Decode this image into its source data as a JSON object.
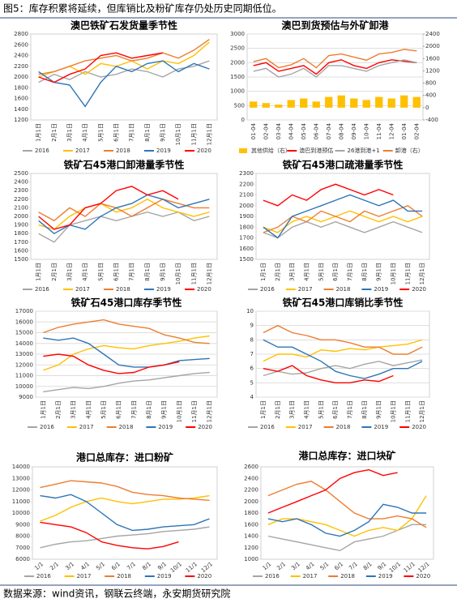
{
  "header": {
    "text": "图5：库存积累将延续，但库销比及粉矿库存仍处历史同期低位。"
  },
  "footer": {
    "text": "数据来源：wind资讯，钢联云终端，永安期货研究院"
  },
  "chart_data": [
    {
      "type": "line",
      "title": "澳巴铁矿石发货量季节性",
      "categories": [
        "1月1日",
        "2月1日",
        "3月1日",
        "4月1日",
        "5月1日",
        "6月1日",
        "7月1日",
        "8月1日",
        "9月1日",
        "10月1日",
        "11月1日",
        "12月1日"
      ],
      "ylim": [
        1200,
        2800
      ],
      "yticks": [
        1200,
        1400,
        1600,
        1800,
        2000,
        2200,
        2400,
        2600,
        2800
      ],
      "series": [
        {
          "name": "2016",
          "color": "#a5a5a5",
          "values": [
            1900,
            2050,
            1950,
            2100,
            2000,
            2050,
            2150,
            2100,
            2000,
            2150,
            2200,
            2300
          ]
        },
        {
          "name": "2017",
          "color": "#ffc000",
          "values": [
            2000,
            2100,
            2200,
            2050,
            2250,
            2200,
            2300,
            2150,
            2300,
            2250,
            2400,
            2650
          ]
        },
        {
          "name": "2018",
          "color": "#ed7d31",
          "values": [
            2050,
            2100,
            2200,
            2300,
            2350,
            2400,
            2300,
            2350,
            2450,
            2350,
            2500,
            2700
          ]
        },
        {
          "name": "2019",
          "color": "#2e75b6",
          "values": [
            2100,
            1900,
            1850,
            1450,
            1900,
            2200,
            2100,
            2250,
            2300,
            2100,
            2250,
            2150
          ]
        },
        {
          "name": "2020",
          "color": "#ff0000",
          "values": [
            2000,
            1900,
            2050,
            2150,
            2400,
            2450,
            2350,
            2400,
            2450,
            null,
            null,
            null
          ]
        }
      ]
    },
    {
      "type": "combo",
      "title": "澳巴到货预估与外矿卸港",
      "grid": true,
      "categories": [
        "01-04",
        "02-04",
        "03-04",
        "04-04",
        "05-04",
        "06-04",
        "07-04",
        "08-04",
        "09-04",
        "10-04",
        "11-04",
        "12-04",
        "01-04",
        "02-04"
      ],
      "ylim": [
        0,
        3000
      ],
      "yticks": [
        0,
        500,
        1000,
        1500,
        2000,
        2500,
        3000
      ],
      "y2lim": [
        -400,
        2400
      ],
      "y2ticks": [
        -400,
        0,
        400,
        800,
        1200,
        1600,
        2000,
        2400
      ],
      "series": [
        {
          "name": "其他供给（右）",
          "type": "bar",
          "axis": "y2",
          "color": "#ffc000",
          "values": [
            200,
            150,
            100,
            250,
            300,
            200,
            350,
            400,
            300,
            250,
            350,
            300,
            400,
            350
          ]
        },
        {
          "name": "澳巴到港预估",
          "color": "#ff0000",
          "values": [
            1900,
            2000,
            1700,
            1800,
            1900,
            1600,
            2000,
            2100,
            1900,
            1800,
            2000,
            2100,
            2050,
            2000
          ]
        },
        {
          "name": "26港到港+1",
          "color": "#a5a5a5",
          "values": [
            1700,
            1800,
            1500,
            1600,
            1800,
            1500,
            1900,
            1900,
            1800,
            1700,
            1900,
            2000,
            2100,
            2000
          ]
        },
        {
          "name": "卸港（右）",
          "axis": "y2",
          "color": "#ed7d31",
          "values": [
            1500,
            1600,
            1300,
            1400,
            1600,
            1300,
            1700,
            1750,
            1650,
            1550,
            1750,
            1800,
            1900,
            1850
          ]
        }
      ]
    },
    {
      "type": "line",
      "title": "铁矿石45港口卸港量季节性",
      "categories": [
        "1月1日",
        "2月1日",
        "3月1日",
        "4月1日",
        "5月1日",
        "6月1日",
        "7月1日",
        "8月1日",
        "9月1日",
        "10月1日",
        "11月1日",
        "12月1日"
      ],
      "ylim": [
        1500,
        2500
      ],
      "yticks": [
        1500,
        1600,
        1700,
        1800,
        1900,
        2000,
        2100,
        2200,
        2300,
        2400,
        2500
      ],
      "series": [
        {
          "name": "2016",
          "color": "#a5a5a5",
          "values": [
            1800,
            1700,
            1900,
            1950,
            2000,
            1950,
            2000,
            2050,
            2000,
            2050,
            1950,
            2000
          ]
        },
        {
          "name": "2017",
          "color": "#ffc000",
          "values": [
            1900,
            1850,
            2000,
            2100,
            2150,
            2050,
            2100,
            2200,
            2100,
            2050,
            2000,
            2050
          ]
        },
        {
          "name": "2018",
          "color": "#ed7d31",
          "values": [
            2050,
            1950,
            2100,
            2000,
            2150,
            2100,
            2000,
            2100,
            2200,
            2150,
            2100,
            2100
          ]
        },
        {
          "name": "2019",
          "color": "#2e75b6",
          "values": [
            1950,
            1800,
            1900,
            1850,
            2000,
            2100,
            2150,
            2250,
            2200,
            2100,
            2150,
            2200
          ]
        },
        {
          "name": "2020",
          "color": "#ff0000",
          "values": [
            2000,
            1850,
            1900,
            2100,
            2150,
            2300,
            2350,
            2250,
            2300,
            2200,
            null,
            null
          ]
        }
      ]
    },
    {
      "type": "line",
      "title": "铁矿石45港口疏港量季节性",
      "categories": [
        "1月1日",
        "2月1日",
        "3月1日",
        "4月1日",
        "5月1日",
        "6月1日",
        "7月1日",
        "8月1日",
        "9月1日",
        "10月1日",
        "11月1日",
        "12月1日"
      ],
      "ylim": [
        1500,
        2300
      ],
      "yticks": [
        1500,
        1600,
        1700,
        1800,
        1900,
        2000,
        2100,
        2200,
        2300
      ],
      "series": [
        {
          "name": "2016",
          "color": "#a5a5a5",
          "values": [
            1750,
            1700,
            1800,
            1850,
            1800,
            1850,
            1800,
            1750,
            1800,
            1850,
            1800,
            1750
          ]
        },
        {
          "name": "2017",
          "color": "#ffc000",
          "values": [
            1800,
            1750,
            1850,
            1900,
            1850,
            1900,
            1950,
            1900,
            1850,
            1900,
            1850,
            1900
          ]
        },
        {
          "name": "2018",
          "color": "#ed7d31",
          "values": [
            1750,
            1800,
            1900,
            1850,
            1950,
            1900,
            1850,
            1950,
            1900,
            1950,
            2000,
            1900
          ]
        },
        {
          "name": "2019",
          "color": "#2e75b6",
          "values": [
            1800,
            1700,
            1900,
            1950,
            2000,
            2050,
            2100,
            2050,
            2000,
            2050,
            1950,
            1950
          ]
        },
        {
          "name": "2020",
          "color": "#ff0000",
          "values": [
            2050,
            2000,
            2100,
            2050,
            2150,
            2200,
            2150,
            2100,
            2150,
            2100,
            null,
            null
          ]
        }
      ]
    },
    {
      "type": "line",
      "title": "铁矿石45港口库存季节性",
      "grid": true,
      "categories": [
        "1月1日",
        "2月1日",
        "3月1日",
        "4月1日",
        "5月1日",
        "6月1日",
        "7月1日",
        "8月1日",
        "9月1日",
        "10月1日",
        "11月1日",
        "12月1日"
      ],
      "ylim": [
        9000,
        17000
      ],
      "yticks": [
        9000,
        10000,
        11000,
        12000,
        13000,
        14000,
        15000,
        16000,
        17000
      ],
      "series": [
        {
          "name": "2016",
          "color": "#a5a5a5",
          "values": [
            9500,
            9700,
            9900,
            9800,
            10000,
            10300,
            10500,
            10600,
            10800,
            11000,
            11200,
            11300
          ]
        },
        {
          "name": "2017",
          "color": "#ffc000",
          "values": [
            11500,
            12000,
            13000,
            13500,
            13800,
            13600,
            13500,
            13800,
            14000,
            14200,
            14500,
            14700
          ]
        },
        {
          "name": "2018",
          "color": "#ed7d31",
          "values": [
            15000,
            15500,
            15800,
            16000,
            16200,
            15800,
            15600,
            15400,
            14800,
            14500,
            14100,
            14000
          ]
        },
        {
          "name": "2019",
          "color": "#2e75b6",
          "values": [
            14500,
            14300,
            14500,
            14000,
            13000,
            12000,
            11800,
            11800,
            12000,
            12400,
            12500,
            12600
          ]
        },
        {
          "name": "2020",
          "color": "#ff0000",
          "values": [
            12800,
            13000,
            12800,
            12000,
            11500,
            11200,
            11300,
            11800,
            12000,
            12300,
            null,
            null
          ]
        }
      ]
    },
    {
      "type": "line",
      "title": "铁矿石45港口库销比季节性",
      "grid": true,
      "categories": [
        "1月1日",
        "2月1日",
        "3月1日",
        "4月1日",
        "5月1日",
        "6月1日",
        "7月1日",
        "8月1日",
        "9月1日",
        "10月1日",
        "11月1日",
        "12月1日"
      ],
      "ylim": [
        4,
        10
      ],
      "yticks": [
        4,
        5,
        6,
        7,
        8,
        9,
        10
      ],
      "series": [
        {
          "name": "2016",
          "color": "#a5a5a5",
          "values": [
            5.5,
            5.8,
            5.6,
            5.7,
            6,
            6.2,
            6,
            6.3,
            6.5,
            6.2,
            6.4,
            6.6
          ]
        },
        {
          "name": "2017",
          "color": "#ffc000",
          "values": [
            6.5,
            7,
            7,
            6.8,
            7.3,
            7.2,
            7.4,
            7.3,
            7.5,
            7.6,
            7.7,
            8
          ]
        },
        {
          "name": "2018",
          "color": "#ed7d31",
          "values": [
            8.5,
            9,
            8.5,
            8.3,
            8,
            8,
            7.8,
            7.5,
            7.5,
            7,
            7,
            7.5
          ]
        },
        {
          "name": "2019",
          "color": "#2e75b6",
          "values": [
            8,
            7.5,
            7.5,
            7,
            6.5,
            5.8,
            5.5,
            5.3,
            5.6,
            6,
            6,
            6.5
          ]
        },
        {
          "name": "2020",
          "color": "#ff0000",
          "values": [
            6,
            5.8,
            6.2,
            5.5,
            5.2,
            5,
            5,
            5.2,
            5.1,
            5.5,
            null,
            null
          ]
        }
      ]
    },
    {
      "type": "line",
      "title": "港口总库存：进口粉矿",
      "categories": [
        "1/1",
        "2/1",
        "3/1",
        "4/1",
        "5/1",
        "6/1",
        "7/1",
        "8/1",
        "9/1",
        "10/1",
        "11/1",
        "12/1"
      ],
      "ylim": [
        6000,
        14000
      ],
      "yticks": [
        6000,
        7000,
        8000,
        9000,
        10000,
        11000,
        12000,
        13000,
        14000
      ],
      "series": [
        {
          "name": "2016",
          "color": "#a5a5a5",
          "values": [
            7000,
            7300,
            7500,
            7600,
            7800,
            8000,
            8100,
            8200,
            8400,
            8500,
            8600,
            8800
          ]
        },
        {
          "name": "2017",
          "color": "#ffc000",
          "values": [
            9300,
            9800,
            10500,
            11000,
            11300,
            11000,
            10800,
            11000,
            11200,
            11200,
            11300,
            11500
          ]
        },
        {
          "name": "2018",
          "color": "#ed7d31",
          "values": [
            12200,
            12500,
            12800,
            12700,
            12600,
            12300,
            11800,
            11600,
            11500,
            11300,
            11200,
            11100
          ]
        },
        {
          "name": "2019",
          "color": "#2e75b6",
          "values": [
            11500,
            11300,
            11600,
            11000,
            10000,
            9000,
            8500,
            8600,
            8800,
            8900,
            9000,
            9500
          ]
        },
        {
          "name": "2020",
          "color": "#ff0000",
          "values": [
            9200,
            9000,
            8800,
            8300,
            7500,
            7200,
            7000,
            6900,
            7100,
            7500,
            null,
            null
          ]
        }
      ]
    },
    {
      "type": "line",
      "title": "港口总库存：进口块矿",
      "categories": [
        "1/1",
        "2/1",
        "3/1",
        "4/1",
        "5/1",
        "6/1",
        "7/1",
        "8/1",
        "9/1",
        "10/1",
        "11/1",
        "12/1"
      ],
      "ylim": [
        1000,
        2600
      ],
      "yticks": [
        1000,
        1200,
        1400,
        1600,
        1800,
        2000,
        2200,
        2400,
        2600
      ],
      "series": [
        {
          "name": "2016",
          "color": "#a5a5a5",
          "values": [
            1400,
            1350,
            1300,
            1250,
            1200,
            1150,
            1300,
            1350,
            1400,
            1500,
            1600,
            1600
          ]
        },
        {
          "name": "2017",
          "color": "#ffc000",
          "values": [
            1600,
            1700,
            1700,
            1650,
            1600,
            1500,
            1400,
            1500,
            1550,
            1500,
            1700,
            2100
          ]
        },
        {
          "name": "2018",
          "color": "#ed7d31",
          "values": [
            2100,
            2200,
            2300,
            2350,
            2200,
            2000,
            1800,
            1700,
            1700,
            1750,
            1700,
            1550
          ]
        },
        {
          "name": "2019",
          "color": "#2e75b6",
          "values": [
            1700,
            1650,
            1700,
            1600,
            1450,
            1400,
            1500,
            1650,
            1950,
            1900,
            1800,
            1800
          ]
        },
        {
          "name": "2020",
          "color": "#ff0000",
          "values": [
            1800,
            1900,
            2000,
            2100,
            2200,
            2400,
            2500,
            2550,
            2450,
            2500,
            null,
            null
          ]
        }
      ]
    }
  ]
}
